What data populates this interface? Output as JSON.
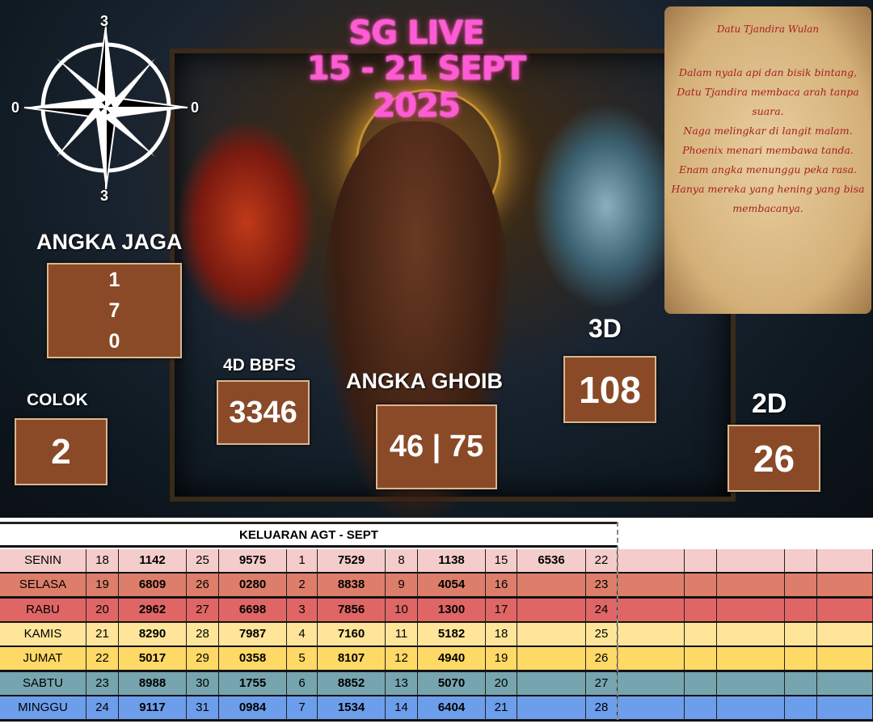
{
  "poster": {
    "title_line1": "SG LIVE",
    "title_line2": "15 - 21 SEPT 2025",
    "compass": {
      "top": "3",
      "bottom": "3",
      "left": "0",
      "right": "0"
    },
    "scroll": {
      "heading": "Datu Tjandira Wulan",
      "lines": [
        "Dalam nyala api dan bisik bintang,",
        "Datu Tjandira membaca arah tanpa suara.",
        "Naga melingkar di langit malam.",
        "Phoenix menari membawa tanda.",
        "Enam angka menunggu peka rasa.",
        "Hanya mereka yang hening yang bisa membacanya."
      ]
    },
    "angka_jaga": {
      "label": "ANGKA JAGA",
      "values": [
        "1",
        "7",
        "0"
      ]
    },
    "colok": {
      "label": "COLOK",
      "value": "2"
    },
    "bbfs": {
      "label": "4D BBFS",
      "value": "3346"
    },
    "ghoib": {
      "label": "ANGKA GHOIB",
      "value": "46 | 75"
    },
    "d3": {
      "label": "3D",
      "value": "108"
    },
    "d2": {
      "label": "2D",
      "value": "26"
    },
    "colors": {
      "title": "#ff5bd6",
      "box": "#8a4a28"
    }
  },
  "table": {
    "title": "KELUARAN AGT - SEPT",
    "rows": [
      {
        "day": "SENIN",
        "color": "#f4cccc",
        "cells": [
          "18",
          "1142",
          "25",
          "9575",
          "1",
          "7529",
          "8",
          "1138",
          "15",
          "6536",
          "22"
        ]
      },
      {
        "day": "SELASA",
        "color": "#dd7e6b",
        "cells": [
          "19",
          "6809",
          "26",
          "0280",
          "2",
          "8838",
          "9",
          "4054",
          "16",
          "",
          "23"
        ]
      },
      {
        "day": "RABU",
        "color": "#e06666",
        "cells": [
          "20",
          "2962",
          "27",
          "6698",
          "3",
          "7856",
          "10",
          "1300",
          "17",
          "",
          "24"
        ]
      },
      {
        "day": "KAMIS",
        "color": "#ffe599",
        "cells": [
          "21",
          "8290",
          "28",
          "7987",
          "4",
          "7160",
          "11",
          "5182",
          "18",
          "",
          "25"
        ]
      },
      {
        "day": "JUMAT",
        "color": "#ffd966",
        "cells": [
          "22",
          "5017",
          "29",
          "0358",
          "5",
          "8107",
          "12",
          "4940",
          "19",
          "",
          "26"
        ]
      },
      {
        "day": "SABTU",
        "color": "#76a5af",
        "cells": [
          "23",
          "8988",
          "30",
          "1755",
          "6",
          "8852",
          "13",
          "5070",
          "20",
          "",
          "27"
        ]
      },
      {
        "day": "MINGGU",
        "color": "#6d9eeb",
        "cells": [
          "24",
          "9117",
          "31",
          "0984",
          "7",
          "1534",
          "14",
          "6404",
          "21",
          "",
          "28"
        ]
      }
    ]
  }
}
